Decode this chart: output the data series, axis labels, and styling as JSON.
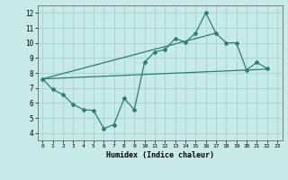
{
  "xlabel": "Humidex (Indice chaleur)",
  "background_color": "#c8eae6",
  "grid_color": "#a0d4cc",
  "line_color": "#2d7d72",
  "xlim": [
    -0.5,
    23.5
  ],
  "ylim": [
    3.5,
    12.5
  ],
  "xticks": [
    0,
    1,
    2,
    3,
    4,
    5,
    6,
    7,
    8,
    9,
    10,
    11,
    12,
    13,
    14,
    15,
    16,
    17,
    18,
    19,
    20,
    21,
    22,
    23
  ],
  "yticks": [
    4,
    5,
    6,
    7,
    8,
    9,
    10,
    11,
    12
  ],
  "line1_x": [
    0,
    1,
    2,
    3,
    4,
    5,
    6,
    7,
    8,
    9,
    10,
    11,
    12,
    13,
    14,
    15,
    16,
    17,
    18,
    19,
    20,
    21,
    22
  ],
  "line1_y": [
    7.6,
    6.9,
    6.55,
    5.9,
    5.55,
    5.5,
    4.3,
    4.55,
    6.3,
    5.55,
    8.7,
    9.4,
    9.55,
    10.3,
    10.05,
    10.65,
    12.0,
    10.65,
    10.0,
    10.0,
    8.2,
    8.7,
    8.3
  ],
  "line2_x": [
    0,
    22
  ],
  "line2_y": [
    7.6,
    8.25
  ],
  "line3_x": [
    0,
    17
  ],
  "line3_y": [
    7.6,
    10.65
  ]
}
